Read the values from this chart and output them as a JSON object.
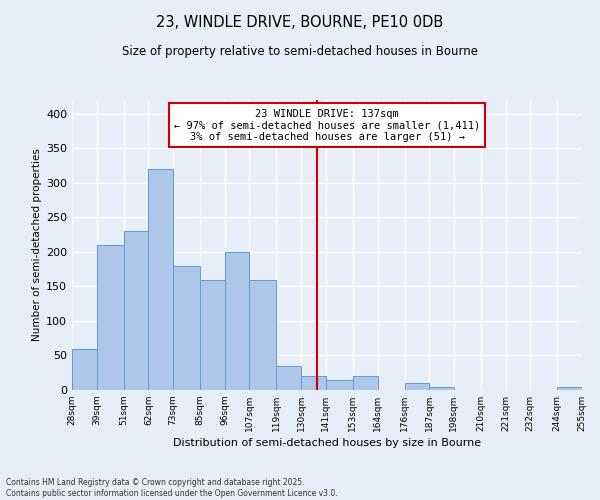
{
  "title": "23, WINDLE DRIVE, BOURNE, PE10 0DB",
  "subtitle": "Size of property relative to semi-detached houses in Bourne",
  "xlabel": "Distribution of semi-detached houses by size in Bourne",
  "ylabel": "Number of semi-detached properties",
  "bin_edges": [
    28,
    39,
    51,
    62,
    73,
    85,
    96,
    107,
    119,
    130,
    141,
    153,
    164,
    176,
    187,
    198,
    210,
    221,
    232,
    244,
    255
  ],
  "bar_heights": [
    60,
    210,
    230,
    320,
    180,
    160,
    200,
    160,
    35,
    20,
    15,
    20,
    0,
    10,
    5,
    0,
    0,
    0,
    0,
    5
  ],
  "bar_color": "#aec6e8",
  "bar_edge_color": "#5a9fd4",
  "vline_x": 137,
  "vline_color": "#cc0000",
  "annotation_text": "23 WINDLE DRIVE: 137sqm\n← 97% of semi-detached houses are smaller (1,411)\n3% of semi-detached houses are larger (51) →",
  "annotation_box_color": "#ffffff",
  "annotation_box_edge": "#cc0000",
  "ylim": [
    0,
    420
  ],
  "yticks": [
    0,
    50,
    100,
    150,
    200,
    250,
    300,
    350,
    400
  ],
  "background_color": "#e8eef7",
  "footer_line1": "Contains HM Land Registry data © Crown copyright and database right 2025.",
  "footer_line2": "Contains public sector information licensed under the Open Government Licence v3.0."
}
